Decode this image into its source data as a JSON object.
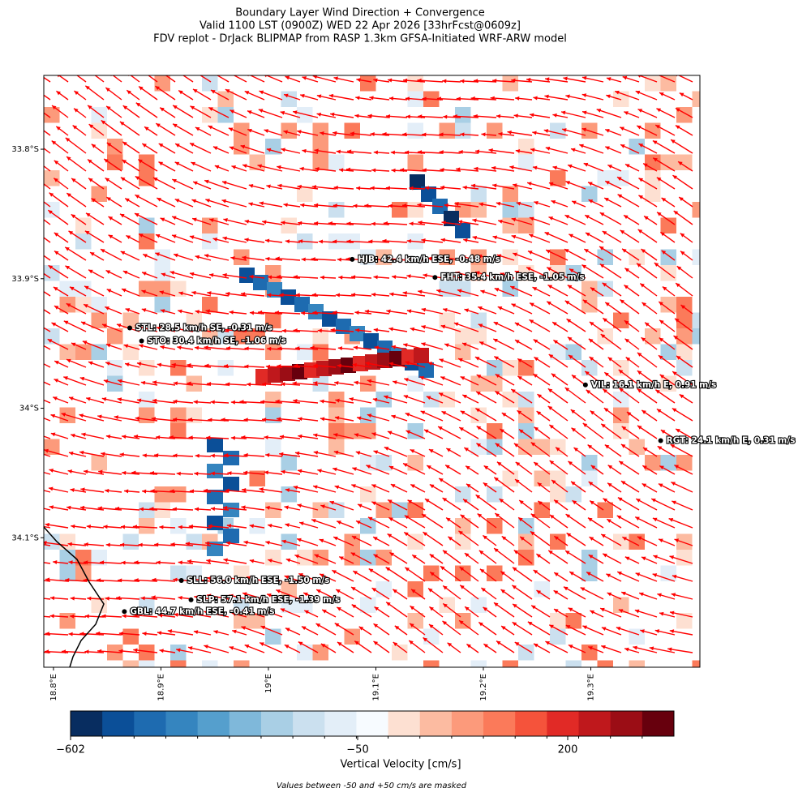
{
  "title_lines": [
    "Boundary Layer Wind Direction + Convergence",
    "Valid 1100 LST (0900Z) WED 22 Apr 2026 [33hrFcst@0609z]",
    "FDV replot - DrJack BLIPMAP from RASP 1.3km GFSA-Initiated WRF-ARW model"
  ],
  "map": {
    "xlim": [
      18.791,
      19.4015
    ],
    "ylim": [
      -34.2,
      -33.743
    ],
    "xticks": [
      {
        "value": 18.8,
        "label": "18.8°E"
      },
      {
        "value": 18.9,
        "label": "18.9°E"
      },
      {
        "value": 19.0,
        "label": "19°E"
      },
      {
        "value": 19.1,
        "label": "19.1°E"
      },
      {
        "value": 19.2,
        "label": "19.2°E"
      },
      {
        "value": 19.3,
        "label": "19.3°E"
      }
    ],
    "yticks": [
      {
        "value": -33.8,
        "label": "33.8°S"
      },
      {
        "value": -33.9,
        "label": "33.9°S"
      },
      {
        "value": -34.0,
        "label": "34°S"
      },
      {
        "value": -34.1,
        "label": "34.1°S"
      }
    ],
    "arrow_color": "#ff0000",
    "stations": [
      {
        "label": "HJB: 42.4 km/h ESE, -0.48 m/s",
        "lon": 19.078,
        "lat": -33.885
      },
      {
        "label": "FHT: 35.4 km/h ESE, -1.05 m/s",
        "lon": 19.155,
        "lat": -33.899
      },
      {
        "label": "STL: 28.5 km/h SE, -0.31 m/s",
        "lon": 18.871,
        "lat": -33.938
      },
      {
        "label": "STO: 30.4 km/h SE, -1.06 m/s",
        "lon": 18.882,
        "lat": -33.948
      },
      {
        "label": "VIL: 16.1 km/h E, 0.91 m/s",
        "lon": 19.295,
        "lat": -33.982
      },
      {
        "label": "RGT: 24.1 km/h E, 0.31 m/s",
        "lon": 19.365,
        "lat": -34.025
      },
      {
        "label": "SLL: 56.0 km/h ESE, -1.50 m/s",
        "lon": 18.919,
        "lat": -34.133
      },
      {
        "label": "SLP: 57.1 km/h ESE, -1.39 m/s",
        "lon": 18.928,
        "lat": -34.148
      },
      {
        "label": "GBL: 44.7 km/h ESE, -0.41 m/s",
        "lon": 18.866,
        "lat": -34.157
      }
    ]
  },
  "colorbar": {
    "colors": [
      "#082d60",
      "#0b4f98",
      "#1e6bb0",
      "#3585bf",
      "#559fcd",
      "#7fb8da",
      "#a9cfe5",
      "#cbe0ef",
      "#e3eef8",
      "#f7fbff",
      "#fde0d2",
      "#fcbba1",
      "#fc9a7b",
      "#fb7a5a",
      "#f5533b",
      "#e12a26",
      "#bf181c",
      "#9b0d15",
      "#67000d"
    ],
    "tick_labels": [
      "−602",
      "−50",
      "200"
    ],
    "label": "Vertical Velocity [cm/s]"
  },
  "note": "Values between -50 and +50 cm/s are masked"
}
